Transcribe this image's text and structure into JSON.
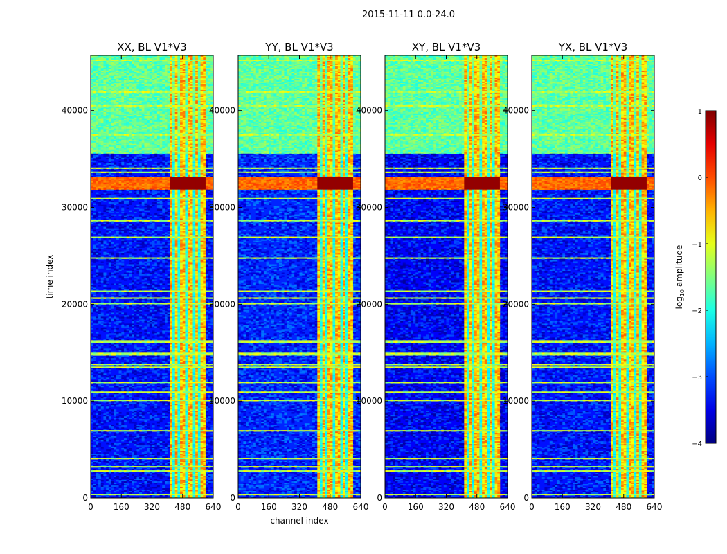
{
  "figure": {
    "suptitle": "2015-11-11 0.0-24.0"
  },
  "colorbar": {
    "label": "log10 amplitude",
    "label_prefix": "log",
    "label_sub": "10",
    "label_suffix": " amplitude",
    "range": [
      -4,
      1
    ],
    "ticks": [
      "1",
      "0",
      "−1",
      "−2",
      "−3",
      "−4"
    ],
    "tick_values": [
      1,
      0,
      -1,
      -2,
      -3,
      -4
    ],
    "colormap": "jet"
  },
  "chart_data": [
    {
      "type": "heatmap",
      "title": "XX, BL V1*V3",
      "xlabel": "",
      "ylabel": "time index",
      "xlim": [
        0,
        640
      ],
      "ylim": [
        0,
        45700
      ],
      "xticks": [
        0,
        160,
        320,
        480,
        640
      ],
      "yticks": [
        0,
        10000,
        20000,
        30000,
        40000
      ],
      "bright_channel_band": [
        410,
        600
      ],
      "saturated_time_band": [
        31800,
        33200
      ],
      "background_level": -3.3,
      "top_flag_band": [
        35500,
        45700
      ]
    },
    {
      "type": "heatmap",
      "title": "YY, BL V1*V3",
      "xlabel": "channel index",
      "ylabel": "",
      "xlim": [
        0,
        640
      ],
      "ylim": [
        0,
        45700
      ],
      "xticks": [
        0,
        160,
        320,
        480,
        640
      ],
      "yticks": [
        0,
        10000,
        20000,
        30000,
        40000
      ],
      "bright_channel_band": [
        410,
        600
      ],
      "saturated_time_band": [
        31800,
        33200
      ],
      "background_level": -3.2,
      "top_flag_band": [
        35500,
        45700
      ]
    },
    {
      "type": "heatmap",
      "title": "XY, BL V1*V3",
      "xlabel": "",
      "ylabel": "",
      "xlim": [
        0,
        640
      ],
      "ylim": [
        0,
        45700
      ],
      "xticks": [
        0,
        160,
        320,
        480,
        640
      ],
      "yticks": [
        0,
        10000,
        20000,
        30000,
        40000
      ],
      "bright_channel_band": [
        410,
        600
      ],
      "saturated_time_band": [
        31800,
        33200
      ],
      "background_level": -3.4,
      "top_flag_band": [
        35500,
        45700
      ]
    },
    {
      "type": "heatmap",
      "title": "YX, BL V1*V3",
      "xlabel": "",
      "ylabel": "",
      "xlim": [
        0,
        640
      ],
      "ylim": [
        0,
        45700
      ],
      "xticks": [
        0,
        160,
        320,
        480,
        640
      ],
      "yticks": [
        0,
        10000,
        20000,
        30000,
        40000
      ],
      "bright_channel_band": [
        410,
        600
      ],
      "saturated_time_band": [
        31800,
        33200
      ],
      "background_level": -3.3,
      "top_flag_band": [
        35500,
        45700
      ]
    }
  ]
}
